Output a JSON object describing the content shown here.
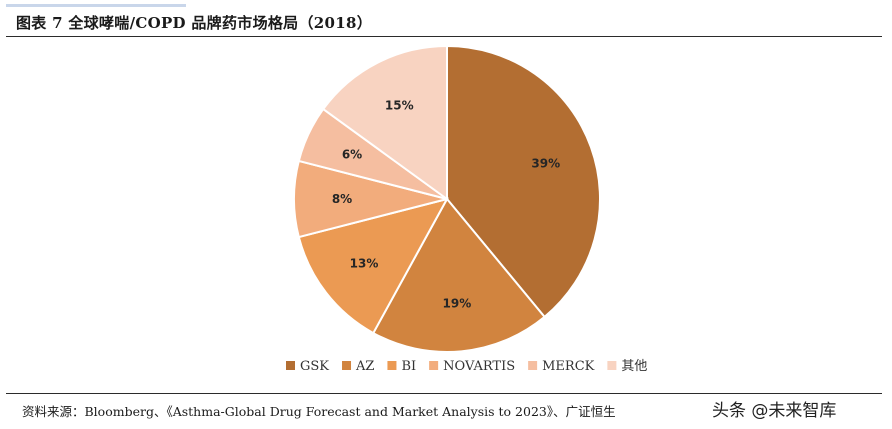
{
  "header": {
    "title": "图表 7 全球哮喘/COPD 品牌药市场格局（2018）"
  },
  "chart_data": {
    "type": "pie",
    "title": "",
    "categories": [
      "GSK",
      "AZ",
      "BI",
      "NOVARTIS",
      "MERCK",
      "其他"
    ],
    "values": [
      39,
      19,
      13,
      8,
      6,
      15
    ],
    "labels": [
      "39%",
      "19%",
      "13%",
      "8%",
      "6%",
      "15%"
    ],
    "colors": [
      "#b36e32",
      "#d1843f",
      "#eb9a53",
      "#f2ac7c",
      "#f5bea0",
      "#f8d3c1"
    ],
    "start_angle": "12 o'clock",
    "direction": "clockwise",
    "legend_position": "bottom"
  },
  "footer": {
    "source": "资料来源：Bloomberg、《Asthma-Global Drug Forecast and Market Analysis to 2023》、广证恒生",
    "watermark": "头条 @未来智库"
  }
}
